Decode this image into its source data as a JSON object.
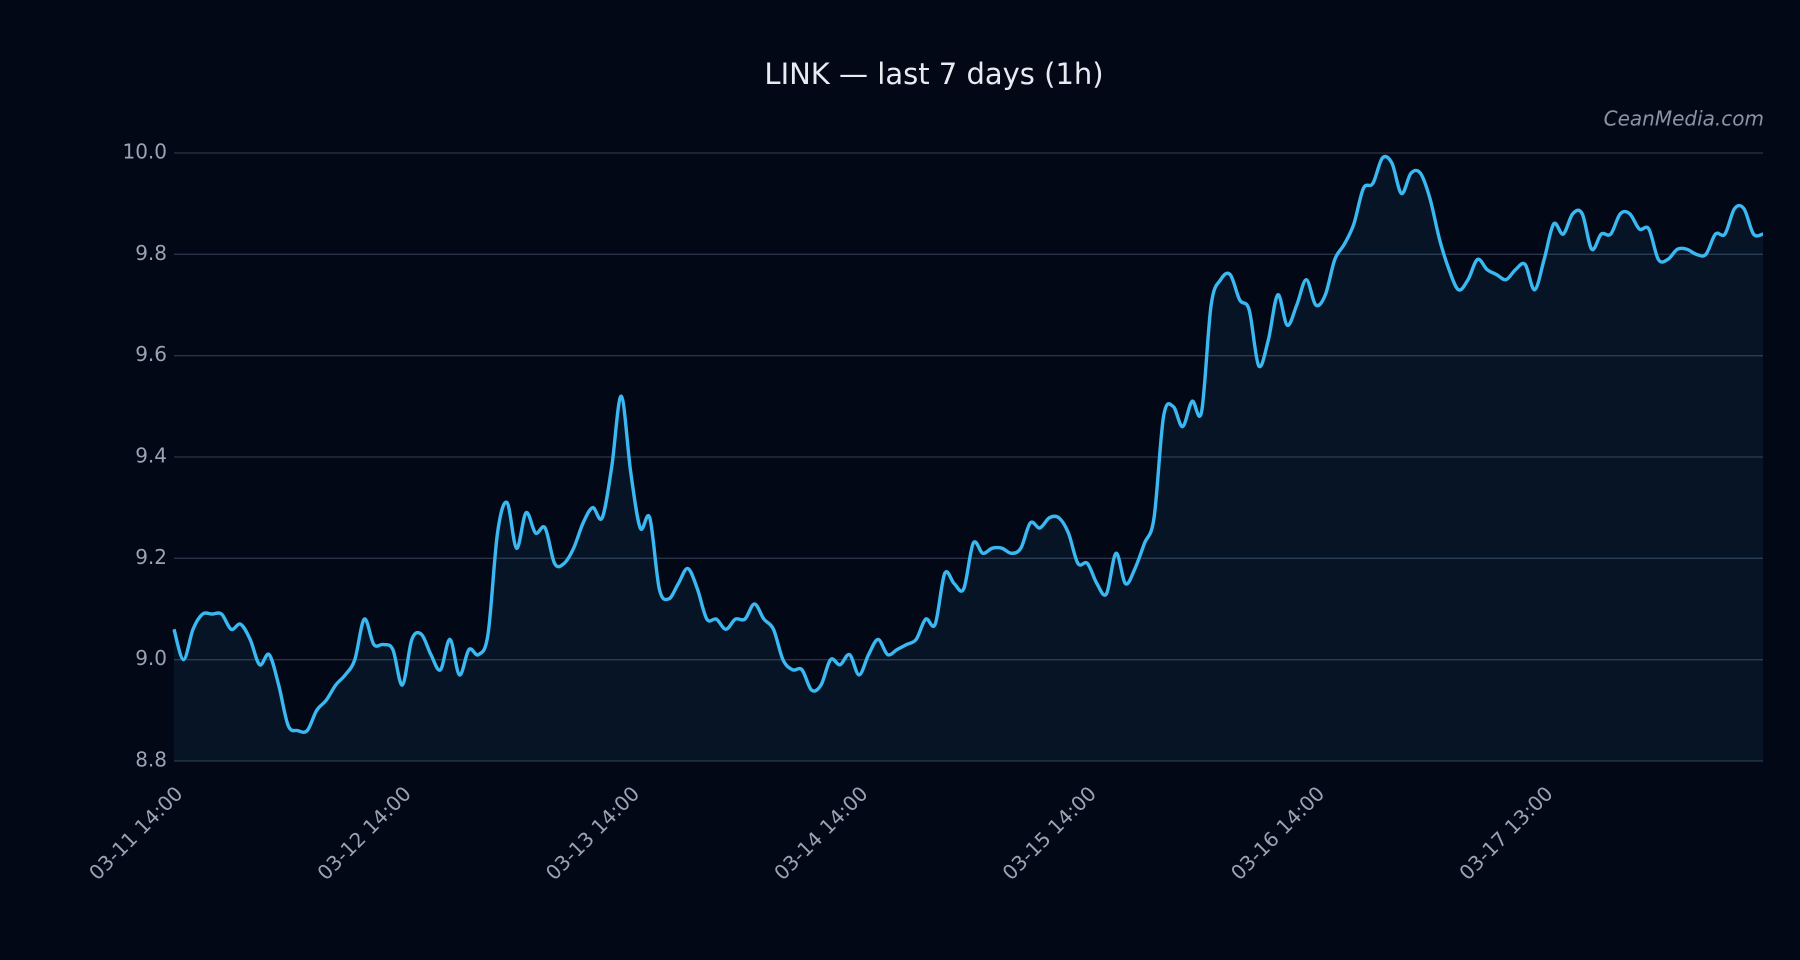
{
  "chart_data": {
    "type": "line",
    "title": "LINK — last 7 days (1h)",
    "watermark": "CeanMedia.com",
    "categories": [
      "03-11 14:00",
      null,
      null,
      null,
      null,
      null,
      null,
      null,
      null,
      null,
      null,
      null,
      null,
      null,
      null,
      null,
      null,
      null,
      null,
      null,
      null,
      null,
      null,
      null,
      "03-12 14:00",
      null,
      null,
      null,
      null,
      null,
      null,
      null,
      null,
      null,
      null,
      null,
      null,
      null,
      null,
      null,
      null,
      null,
      null,
      null,
      null,
      null,
      null,
      null,
      "03-13 14:00",
      null,
      null,
      null,
      null,
      null,
      null,
      null,
      null,
      null,
      null,
      null,
      null,
      null,
      null,
      null,
      null,
      null,
      null,
      null,
      null,
      null,
      null,
      null,
      "03-14 14:00",
      null,
      null,
      null,
      null,
      null,
      null,
      null,
      null,
      null,
      null,
      null,
      null,
      null,
      null,
      null,
      null,
      null,
      null,
      null,
      null,
      null,
      null,
      null,
      "03-15 14:00",
      null,
      null,
      null,
      null,
      null,
      null,
      null,
      null,
      null,
      null,
      null,
      null,
      null,
      null,
      null,
      null,
      null,
      null,
      null,
      null,
      null,
      null,
      null,
      "03-16 14:00",
      null,
      null,
      null,
      null,
      null,
      null,
      null,
      null,
      null,
      null,
      null,
      null,
      null,
      null,
      null,
      null,
      null,
      null,
      null,
      null,
      null,
      null,
      null,
      "03-17 13:00",
      null,
      null,
      null,
      null,
      null,
      null,
      null,
      null,
      null,
      null,
      null,
      null,
      null,
      null,
      null,
      null,
      null,
      null,
      null,
      null,
      null,
      null,
      null
    ],
    "values": [
      9.06,
      9.0,
      9.06,
      9.09,
      9.09,
      9.09,
      9.06,
      9.07,
      9.04,
      8.99,
      9.01,
      8.95,
      8.87,
      8.86,
      8.86,
      8.9,
      8.92,
      8.95,
      8.97,
      9.0,
      9.08,
      9.03,
      9.03,
      9.02,
      8.95,
      9.04,
      9.05,
      9.01,
      8.98,
      9.04,
      8.97,
      9.02,
      9.01,
      9.05,
      9.25,
      9.31,
      9.22,
      9.29,
      9.25,
      9.26,
      9.19,
      9.19,
      9.22,
      9.27,
      9.3,
      9.28,
      9.38,
      9.52,
      9.37,
      9.26,
      9.28,
      9.14,
      9.12,
      9.15,
      9.18,
      9.14,
      9.08,
      9.08,
      9.06,
      9.08,
      9.08,
      9.11,
      9.08,
      9.06,
      9.0,
      8.98,
      8.98,
      8.94,
      8.95,
      9.0,
      8.99,
      9.01,
      8.97,
      9.01,
      9.04,
      9.01,
      9.02,
      9.03,
      9.04,
      9.08,
      9.07,
      9.17,
      9.15,
      9.14,
      9.23,
      9.21,
      9.22,
      9.22,
      9.21,
      9.22,
      9.27,
      9.26,
      9.28,
      9.28,
      9.25,
      9.19,
      9.19,
      9.15,
      9.13,
      9.21,
      9.15,
      9.18,
      9.23,
      9.28,
      9.48,
      9.5,
      9.46,
      9.51,
      9.49,
      9.7,
      9.75,
      9.76,
      9.71,
      9.69,
      9.58,
      9.63,
      9.72,
      9.66,
      9.7,
      9.75,
      9.7,
      9.72,
      9.79,
      9.82,
      9.86,
      9.93,
      9.94,
      9.99,
      9.98,
      9.92,
      9.96,
      9.96,
      9.91,
      9.83,
      9.77,
      9.73,
      9.75,
      9.79,
      9.77,
      9.76,
      9.75,
      9.77,
      9.78,
      9.73,
      9.79,
      9.86,
      9.84,
      9.88,
      9.88,
      9.81,
      9.84,
      9.84,
      9.88,
      9.88,
      9.85,
      9.85,
      9.79,
      9.79,
      9.81,
      9.81,
      9.8,
      9.8,
      9.84,
      9.84,
      9.89,
      9.89,
      9.84,
      9.84
    ],
    "color": "#3ab8f2",
    "fill": true,
    "ylim": [
      8.8,
      10.0
    ],
    "yticks": [
      {
        "value": 8.8,
        "label": "8.8"
      },
      {
        "value": 9.0,
        "label": "9.0"
      },
      {
        "value": 9.2,
        "label": "9.2"
      },
      {
        "value": 9.4,
        "label": "9.4"
      },
      {
        "value": 9.6,
        "label": "9.6"
      },
      {
        "value": 9.8,
        "label": "9.8"
      },
      {
        "value": 10.0,
        "label": "10.0"
      }
    ],
    "grid": true
  }
}
